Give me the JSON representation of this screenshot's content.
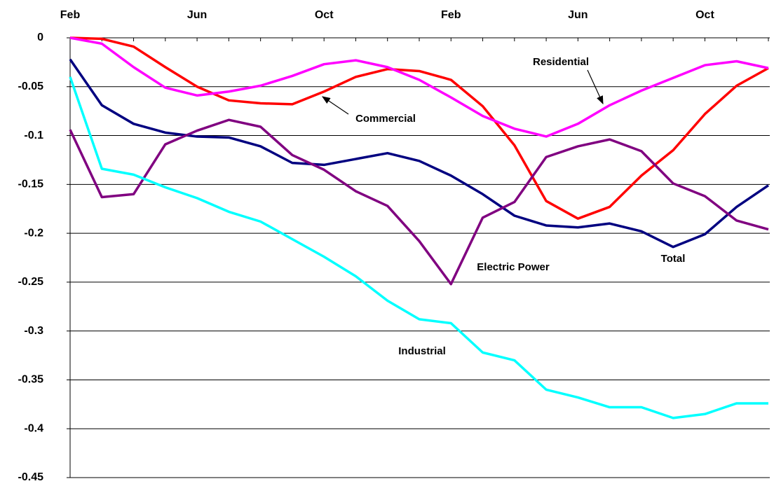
{
  "chart_data": {
    "type": "line",
    "categories": [
      "Feb",
      null,
      null,
      null,
      "Jun",
      null,
      null,
      null,
      "Oct",
      null,
      null,
      null,
      "Feb",
      null,
      null,
      null,
      "Jun",
      null,
      null,
      null,
      "Oct",
      null,
      null
    ],
    "series": [
      {
        "name": "Commercial",
        "color": "#ff0000",
        "values": [
          0,
          -0.001,
          -0.009,
          -0.03,
          -0.05,
          -0.064,
          -0.067,
          -0.068,
          -0.055,
          -0.04,
          -0.032,
          -0.034,
          -0.043,
          -0.07,
          -0.11,
          -0.167,
          -0.185,
          -0.173,
          -0.141,
          -0.115,
          -0.078,
          -0.049,
          -0.031
        ]
      },
      {
        "name": "Residential",
        "color": "#ff00ff",
        "values": [
          0,
          -0.006,
          -0.03,
          -0.051,
          -0.059,
          -0.055,
          -0.049,
          -0.039,
          -0.027,
          -0.023,
          -0.03,
          -0.043,
          -0.061,
          -0.08,
          -0.093,
          -0.101,
          -0.088,
          -0.069,
          -0.054,
          -0.041,
          -0.028,
          -0.024,
          -0.031
        ]
      },
      {
        "name": "Total",
        "color": "#000080",
        "values": [
          -0.022,
          -0.069,
          -0.088,
          -0.097,
          -0.101,
          -0.102,
          -0.111,
          -0.128,
          -0.13,
          -0.124,
          -0.118,
          -0.126,
          -0.141,
          -0.16,
          -0.182,
          -0.192,
          -0.194,
          -0.19,
          -0.198,
          -0.214,
          -0.201,
          -0.173,
          -0.151
        ]
      },
      {
        "name": "Electric Power",
        "color": "#800080",
        "values": [
          -0.094,
          -0.163,
          -0.16,
          -0.109,
          -0.095,
          -0.084,
          -0.091,
          -0.12,
          -0.135,
          -0.157,
          -0.172,
          -0.208,
          -0.252,
          -0.184,
          -0.168,
          -0.122,
          -0.111,
          -0.104,
          -0.116,
          -0.149,
          -0.162,
          -0.187,
          -0.196
        ]
      },
      {
        "name": "Industrial",
        "color": "#00ffff",
        "values": [
          -0.04,
          -0.134,
          -0.14,
          -0.153,
          -0.164,
          -0.178,
          -0.188,
          -0.206,
          -0.224,
          -0.244,
          -0.269,
          -0.288,
          -0.292,
          -0.322,
          -0.33,
          -0.36,
          -0.368,
          -0.378,
          -0.378,
          -0.389,
          -0.385,
          -0.374,
          -0.374
        ]
      }
    ],
    "ylim": [
      -0.45,
      0
    ],
    "yticks": [
      0,
      -0.05,
      -0.1,
      -0.15,
      -0.2,
      -0.25,
      -0.3,
      -0.35,
      -0.4,
      -0.45
    ],
    "grid": true
  }
}
